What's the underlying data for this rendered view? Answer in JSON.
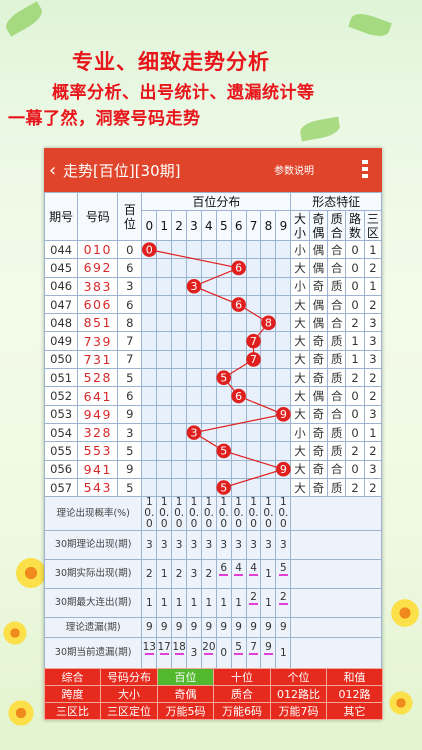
{
  "promo": {
    "line1": "专业、细致走势分析",
    "line2": "概率分析、出号统计、遗漏统计等",
    "line3": "一幕了然，洞察号码走势"
  },
  "header": {
    "back": "‹",
    "title": "走势[百位][30期]",
    "params": "参数说明",
    "menu_icon": "menu-icon"
  },
  "columns": {
    "period": "期号",
    "code": "号码",
    "hundred": "百\n位",
    "distribution": "百位分布",
    "digits": [
      "0",
      "1",
      "2",
      "3",
      "4",
      "5",
      "6",
      "7",
      "8",
      "9"
    ],
    "features": "形态特征",
    "f_big": "大\n小",
    "f_odd": "奇\n偶",
    "f_prime": "质\n合",
    "f_road": "路\n数",
    "f_zone": "三\n区"
  },
  "rows": [
    {
      "period": "044",
      "code": "010",
      "h": "0",
      "d": 0,
      "bs": "小",
      "oe": "偶",
      "pc": "合",
      "road": "0",
      "zone": "1",
      "hot": [
        "bs",
        "oe",
        "pc",
        "road"
      ]
    },
    {
      "period": "045",
      "code": "692",
      "h": "6",
      "d": 6,
      "bs": "大",
      "oe": "偶",
      "pc": "合",
      "road": "0",
      "zone": "2",
      "hot": [
        "bs",
        "oe",
        "pc",
        "road"
      ]
    },
    {
      "period": "046",
      "code": "383",
      "h": "3",
      "d": 3,
      "bs": "小",
      "oe": "奇",
      "pc": "质",
      "road": "0",
      "zone": "1",
      "hot": [
        "bs",
        "oe",
        "pc",
        "road"
      ]
    },
    {
      "period": "047",
      "code": "606",
      "h": "6",
      "d": 6,
      "bs": "大",
      "oe": "偶",
      "pc": "合",
      "road": "0",
      "zone": "2",
      "hot": [
        "bs",
        "oe",
        "pc",
        "road"
      ]
    },
    {
      "period": "048",
      "code": "851",
      "h": "8",
      "d": 8,
      "bs": "大",
      "oe": "偶",
      "pc": "合",
      "road": "2",
      "zone": "3",
      "hot": [
        "bs",
        "oe",
        "pc",
        "zone"
      ]
    },
    {
      "period": "049",
      "code": "739",
      "h": "7",
      "d": 7,
      "bs": "大",
      "oe": "奇",
      "pc": "质",
      "road": "1",
      "zone": "3",
      "hot": [
        "bs",
        "oe",
        "pc",
        "road",
        "zone"
      ]
    },
    {
      "period": "050",
      "code": "731",
      "h": "7",
      "d": 7,
      "bs": "大",
      "oe": "奇",
      "pc": "质",
      "road": "1",
      "zone": "3",
      "hot": [
        "bs",
        "oe",
        "pc",
        "road",
        "zone"
      ]
    },
    {
      "period": "051",
      "code": "528",
      "h": "5",
      "d": 5,
      "bs": "大",
      "oe": "奇",
      "pc": "质",
      "road": "2",
      "zone": "2",
      "hot": [
        "bs",
        "oe",
        "pc"
      ]
    },
    {
      "period": "052",
      "code": "641",
      "h": "6",
      "d": 6,
      "bs": "大",
      "oe": "偶",
      "pc": "合",
      "road": "0",
      "zone": "2",
      "hot": [
        "bs",
        "oe",
        "pc",
        "road"
      ]
    },
    {
      "period": "053",
      "code": "949",
      "h": "9",
      "d": 9,
      "bs": "大",
      "oe": "奇",
      "pc": "合",
      "road": "0",
      "zone": "3",
      "hot": [
        "bs",
        "oe",
        "pc",
        "road",
        "zone"
      ]
    },
    {
      "period": "054",
      "code": "328",
      "h": "3",
      "d": 3,
      "bs": "小",
      "oe": "奇",
      "pc": "质",
      "road": "0",
      "zone": "1",
      "hot": [
        "bs",
        "oe",
        "pc",
        "road"
      ]
    },
    {
      "period": "055",
      "code": "553",
      "h": "5",
      "d": 5,
      "bs": "大",
      "oe": "奇",
      "pc": "质",
      "road": "2",
      "zone": "2",
      "hot": [
        "bs",
        "oe",
        "pc"
      ]
    },
    {
      "period": "056",
      "code": "941",
      "h": "9",
      "d": 9,
      "bs": "大",
      "oe": "奇",
      "pc": "合",
      "road": "0",
      "zone": "3",
      "hot": [
        "bs",
        "oe",
        "pc",
        "road",
        "zone"
      ]
    },
    {
      "period": "057",
      "code": "543",
      "h": "5",
      "d": 5,
      "bs": "大",
      "oe": "奇",
      "pc": "质",
      "road": "2",
      "zone": "2",
      "hot": [
        "bs",
        "oe",
        "pc"
      ]
    }
  ],
  "stats": [
    {
      "label": "理论出现概率(%)",
      "values": [
        "10.0",
        "10.0",
        "10.0",
        "10.0",
        "10.0",
        "10.0",
        "10.0",
        "10.0",
        "10.0",
        "10.0"
      ],
      "marks": []
    },
    {
      "label": "30期理论出现(期)",
      "values": [
        "3",
        "3",
        "3",
        "3",
        "3",
        "3",
        "3",
        "3",
        "3",
        "3"
      ],
      "marks": []
    },
    {
      "label": "30期实际出现(期)",
      "values": [
        "2",
        "1",
        "2",
        "3",
        "2",
        "6",
        "4",
        "4",
        "1",
        "5"
      ],
      "marks": [
        5,
        6,
        7,
        9
      ]
    },
    {
      "label": "30期最大连出(期)",
      "values": [
        "1",
        "1",
        "1",
        "1",
        "1",
        "1",
        "1",
        "2",
        "1",
        "2"
      ],
      "marks": [
        7,
        9
      ]
    },
    {
      "label": "理论遗漏(期)",
      "values": [
        "9",
        "9",
        "9",
        "9",
        "9",
        "9",
        "9",
        "9",
        "9",
        "9"
      ],
      "marks": []
    },
    {
      "label": "30期当前遗漏(期)",
      "values": [
        "13",
        "17",
        "18",
        "3",
        "20",
        "0",
        "5",
        "7",
        "9",
        "1"
      ],
      "marks": [
        0,
        1,
        2,
        4,
        6,
        7,
        8
      ]
    }
  ],
  "tabs": [
    [
      "综合",
      "号码分布",
      "百位",
      "十位",
      "个位",
      "和值"
    ],
    [
      "跨度",
      "大小",
      "奇偶",
      "质合",
      "012路比",
      "012路"
    ],
    [
      "三区比",
      "三区定位",
      "万能5码",
      "万能6码",
      "万能7码",
      "其它"
    ]
  ],
  "selected_tab": "百位",
  "colors": {
    "header": "#e0452b",
    "promo_text": "#e8151b",
    "ball": "#e0201e",
    "line": "#e0201e",
    "tab": "#e62b1e",
    "tab_selected": "#52b82e",
    "accent": "#e8542b"
  }
}
